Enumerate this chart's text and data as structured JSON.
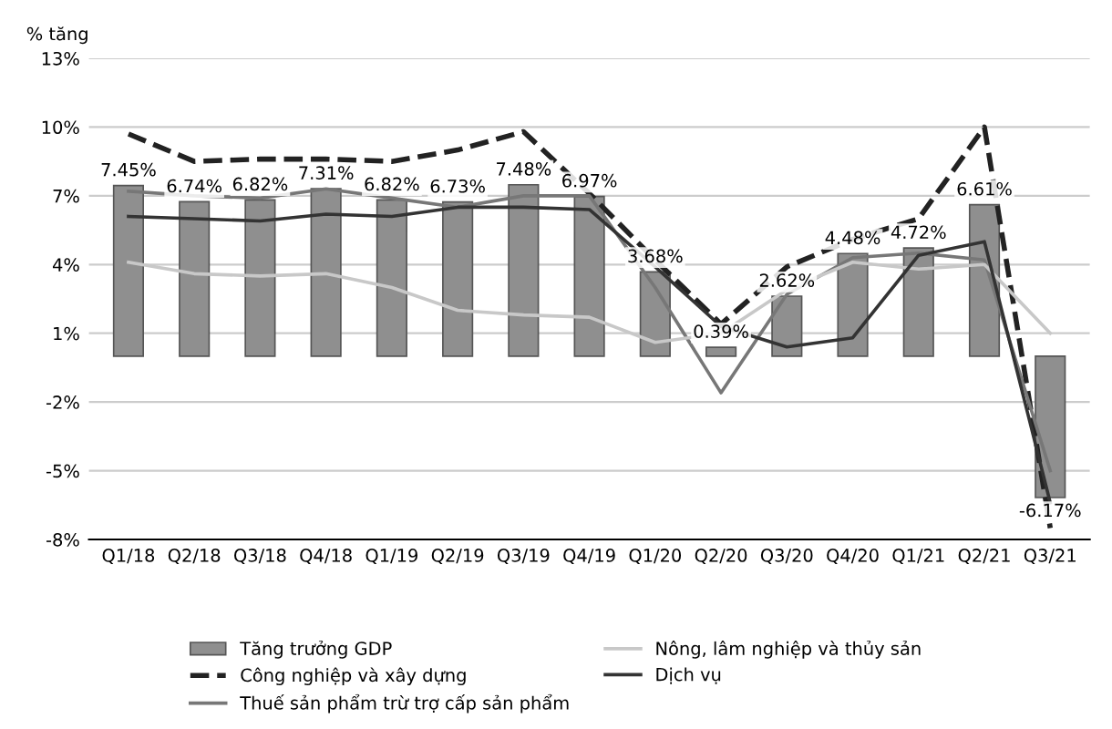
{
  "chart_data": {
    "type": "bar",
    "ylabel": "% tăng",
    "categories": [
      "Q1/18",
      "Q2/18",
      "Q3/18",
      "Q4/18",
      "Q1/19",
      "Q2/19",
      "Q3/19",
      "Q4/19",
      "Q1/20",
      "Q2/20",
      "Q3/20",
      "Q4/20",
      "Q1/21",
      "Q2/21",
      "Q3/21"
    ],
    "ylim": [
      -8,
      13
    ],
    "yticks": [
      {
        "value": -8,
        "label": "-8%"
      },
      {
        "value": -5,
        "label": "-5%"
      },
      {
        "value": -2,
        "label": "-2%"
      },
      {
        "value": 1,
        "label": "1%"
      },
      {
        "value": 4,
        "label": "4%"
      },
      {
        "value": 7,
        "label": "7%"
      },
      {
        "value": 10,
        "label": "10%"
      },
      {
        "value": 13,
        "label": "13%"
      }
    ],
    "grid": "y",
    "legend": "bottom",
    "series": [
      {
        "name": "Tăng trưởng GDP",
        "color": "#8f8f8f",
        "values": [
          7.45,
          6.74,
          6.82,
          7.31,
          6.82,
          6.73,
          7.48,
          6.97,
          3.68,
          0.39,
          2.62,
          4.48,
          4.72,
          6.61,
          -6.17
        ],
        "value_labels": [
          "7.45%",
          "6.74%",
          "6.82%",
          "7.31%",
          "6.82%",
          "6.73%",
          "7.48%",
          "6.97%",
          "3.68%",
          "0.39%",
          "2.62%",
          "4.48%",
          "4.72%",
          "6.61%",
          "-6.17%"
        ]
      },
      {
        "name": "Công nghiệp và xây dựng",
        "type": "line",
        "line_style": "dashed",
        "color": "#222222",
        "values": [
          9.7,
          8.5,
          8.6,
          8.6,
          8.5,
          9.0,
          9.8,
          7.1,
          4.2,
          1.4,
          3.9,
          5.1,
          6.0,
          10.0,
          -7.5
        ]
      },
      {
        "name": "Thuế sản phẩm trừ trợ cấp sản phẩm",
        "type": "line",
        "line_style": "solid",
        "color": "#777777",
        "values": [
          7.2,
          7.0,
          6.9,
          7.3,
          6.9,
          6.5,
          7.0,
          7.0,
          3.0,
          -1.6,
          2.7,
          4.3,
          4.5,
          4.2,
          -5.0
        ]
      },
      {
        "name": "Nông, lâm nghiệp và thủy sản",
        "type": "line",
        "line_style": "solid",
        "color": "#c8c8c8",
        "values": [
          4.1,
          3.6,
          3.5,
          3.6,
          3.0,
          2.0,
          1.8,
          1.7,
          0.6,
          1.0,
          2.9,
          4.1,
          3.8,
          4.0,
          1.0
        ]
      },
      {
        "name": "Dịch vụ",
        "type": "line",
        "line_style": "solid",
        "color": "#333333",
        "values": [
          6.1,
          6.0,
          5.9,
          6.2,
          6.1,
          6.5,
          6.5,
          6.4,
          3.9,
          1.3,
          0.4,
          0.8,
          4.4,
          5.0,
          -6.4
        ]
      }
    ]
  }
}
